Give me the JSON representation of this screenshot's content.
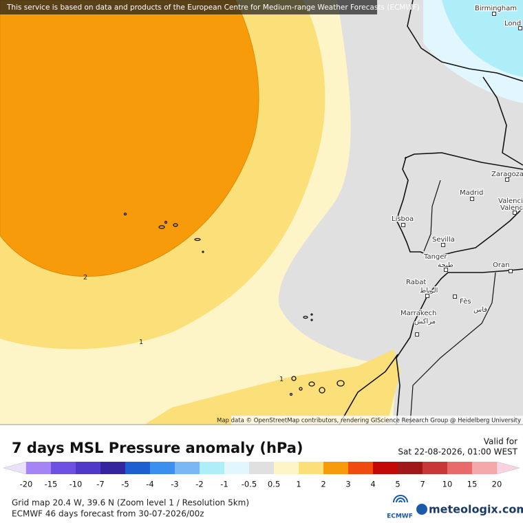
{
  "header": {
    "notice": "This service is based on data and products of the European Centre for Medium-range Weather Forecasts (ECMWF)"
  },
  "map": {
    "places": [
      {
        "label": "Birmingham"
      },
      {
        "label": "Lond"
      },
      {
        "label": "Zaragoza"
      },
      {
        "label": "Madrid"
      },
      {
        "label": "Valencia"
      },
      {
        "label": "Valenc"
      },
      {
        "label": "Lisboa"
      },
      {
        "label": "Sevilla"
      },
      {
        "label": "Tanger",
        "label2": "طنجة"
      },
      {
        "label": "Oran"
      },
      {
        "label": "Rabat",
        "label2": "الرباط"
      },
      {
        "label": "Fès",
        "label2": "فاس"
      },
      {
        "label": "Marrakech",
        "label2": "مراكش"
      }
    ],
    "contour_labels": [
      "2",
      "1",
      "1"
    ],
    "attribution": "Map data © OpenStreetMap contributors, rendering GIScience Research Group @ Heidelberg University"
  },
  "legend": {
    "title": "7 days MSL Pressure anomaly (hPa)",
    "valid_label": "Valid for",
    "valid_time": "Sat 22-08-2026, 01:00 WEST",
    "ticks": [
      -20,
      -15,
      -10,
      -7,
      -5,
      -4,
      -3,
      -2,
      -1,
      -0.5,
      0.5,
      1,
      2,
      3,
      4,
      5,
      7,
      10,
      15,
      20
    ],
    "colors": [
      "#e9e2fa",
      "#a585f6",
      "#6b50e2",
      "#5038c8",
      "#34249e",
      "#1d5fd0",
      "#3b8fef",
      "#7ab8f5",
      "#aeeef8",
      "#e2f6fd",
      "#e0e0e0",
      "#fdf4c8",
      "#fbe07a",
      "#f79b0a",
      "#f04a0e",
      "#c40808",
      "#a01818",
      "#c83838",
      "#e86a6a",
      "#f5a8a8",
      "#fad2e0"
    ]
  },
  "footer": {
    "grid": "Grid map 20.4 W, 39.6 N (Zoom level 1 / Resolution 5km)",
    "forecast": "ECMWF 46 days forecast from  30-07-2026/00z",
    "logos": [
      "ECMWF",
      "meteologix.com"
    ]
  }
}
